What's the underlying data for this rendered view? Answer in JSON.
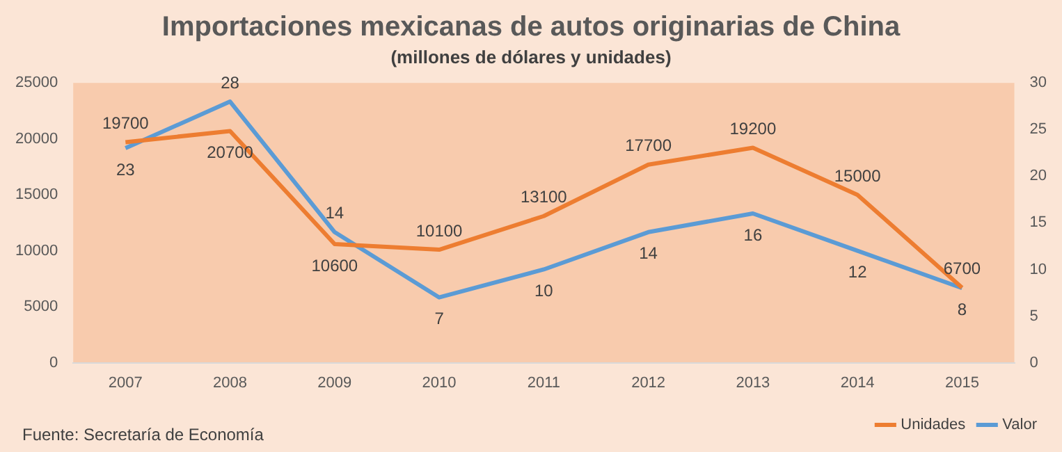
{
  "chart_data": {
    "type": "line",
    "title": "Importaciones mexicanas de autos originarias de China",
    "subtitle": "(millones de dólares y unidades)",
    "categories": [
      "2007",
      "2008",
      "2009",
      "2010",
      "2011",
      "2012",
      "2013",
      "2014",
      "2015"
    ],
    "series": [
      {
        "name": "Unidades",
        "color": "#ed7d31",
        "values": [
          19700,
          20700,
          10600,
          10100,
          13100,
          17700,
          19200,
          15000,
          6700
        ]
      },
      {
        "name": "Valor",
        "color": "#5b9bd5",
        "axis": "y2",
        "values": [
          23,
          28,
          14,
          7,
          10,
          14,
          16,
          12,
          8
        ]
      }
    ],
    "ylim": [
      0,
      25000
    ],
    "yticks": [
      0,
      5000,
      10000,
      15000,
      20000,
      25000
    ],
    "y2lim": [
      0,
      30
    ],
    "y2ticks": [
      0,
      5,
      10,
      15,
      20,
      25,
      30
    ],
    "grid": false,
    "legend": "bottom right",
    "marker": "none",
    "line_style": "solid",
    "data_labels": true,
    "annotations": [
      "Fuente: Secretaría de Economía"
    ]
  }
}
